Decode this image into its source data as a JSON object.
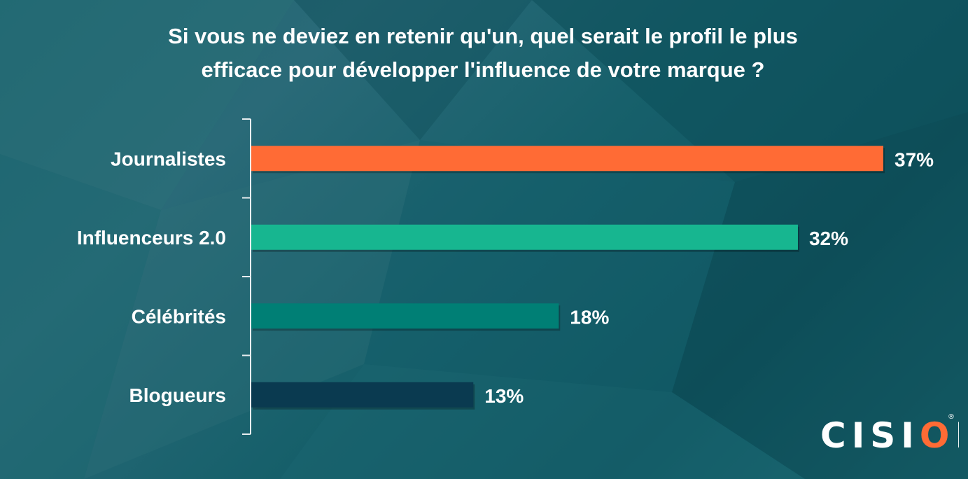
{
  "title": "Si vous ne deviez en retenir qu'un, quel serait le profil le plus efficace pour développer l'influence de votre marque ?",
  "title_line1": "Si vous ne deviez en retenir qu'un, quel serait le profil le plus",
  "title_line2": "efficace pour développer l'influence de votre marque ?",
  "logo": {
    "text_left": "CISI",
    "text_o": "O",
    "text_right": "N",
    "registered": "®"
  },
  "chart_data": {
    "type": "bar",
    "orientation": "horizontal",
    "categories": [
      "Journalistes",
      "Influenceurs 2.0",
      "Célébrités",
      "Blogueurs"
    ],
    "values": [
      37,
      32,
      18,
      13
    ],
    "value_labels": [
      "37%",
      "32%",
      "18%",
      "13%"
    ],
    "bar_colors": [
      "#ff6b35",
      "#17b690",
      "#007f75",
      "#0a3a50"
    ],
    "unit": "%",
    "xlim": [
      0,
      37
    ],
    "grid": false,
    "legend": "none"
  }
}
